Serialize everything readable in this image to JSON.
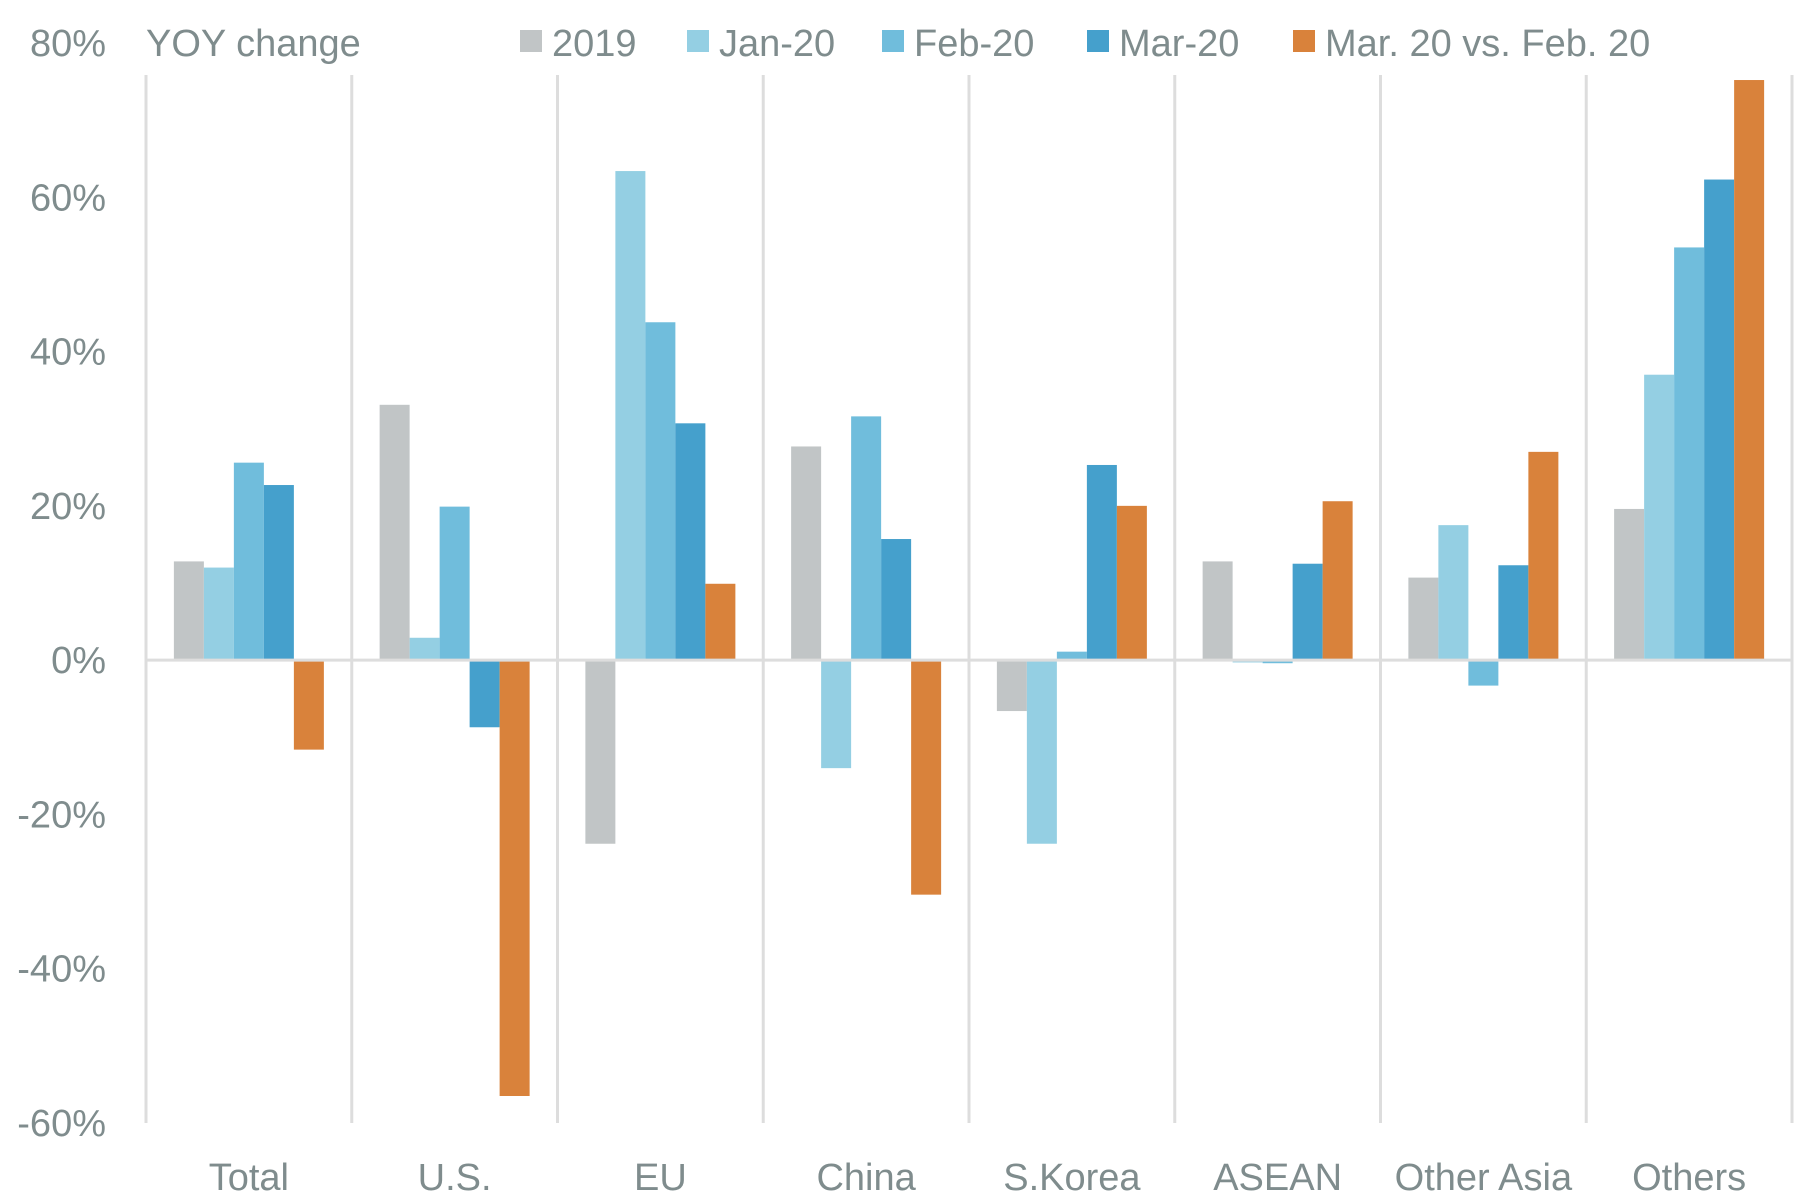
{
  "chart_data": {
    "type": "bar",
    "title": "",
    "ylabel": "YOY change",
    "xlabel": "",
    "ylim": [
      -60,
      80
    ],
    "yticks": [
      80,
      60,
      40,
      20,
      0,
      -20,
      -40,
      -60
    ],
    "ytick_labels": [
      "80%",
      "60%",
      "40%",
      "20%",
      "0%",
      "-20%",
      "-40%",
      "-60%"
    ],
    "grid": "vertical separators between categories",
    "legend_position": "top",
    "categories": [
      "Total",
      "U.S.",
      "EU",
      "China",
      "S.Korea",
      "ASEAN",
      "Other Asia",
      "Others"
    ],
    "series": [
      {
        "name": "2019",
        "color": "#c1c5c6",
        "values": [
          12.8,
          33.1,
          -23.8,
          27.7,
          -6.6,
          12.8,
          10.7,
          19.6
        ]
      },
      {
        "name": "Jan-20",
        "color": "#94cfe3",
        "values": [
          12.0,
          2.9,
          63.4,
          -14.0,
          -23.8,
          -0.3,
          17.5,
          37.0
        ]
      },
      {
        "name": "Feb-20",
        "color": "#70bddc",
        "values": [
          25.6,
          19.9,
          43.8,
          31.6,
          1.1,
          -0.4,
          -3.3,
          53.5
        ]
      },
      {
        "name": "Mar-20",
        "color": "#45a0cc",
        "values": [
          22.7,
          -8.7,
          30.7,
          15.7,
          25.3,
          12.5,
          12.3,
          62.3
        ]
      },
      {
        "name": "Mar. 20 vs. Feb. 20",
        "color": "#d9823b",
        "values": [
          -11.6,
          -56.5,
          9.9,
          -30.4,
          20.0,
          20.6,
          27.0,
          75.2
        ]
      }
    ]
  },
  "colors": {
    "text": "#7f8c8d",
    "gridline": "#dddddd"
  }
}
